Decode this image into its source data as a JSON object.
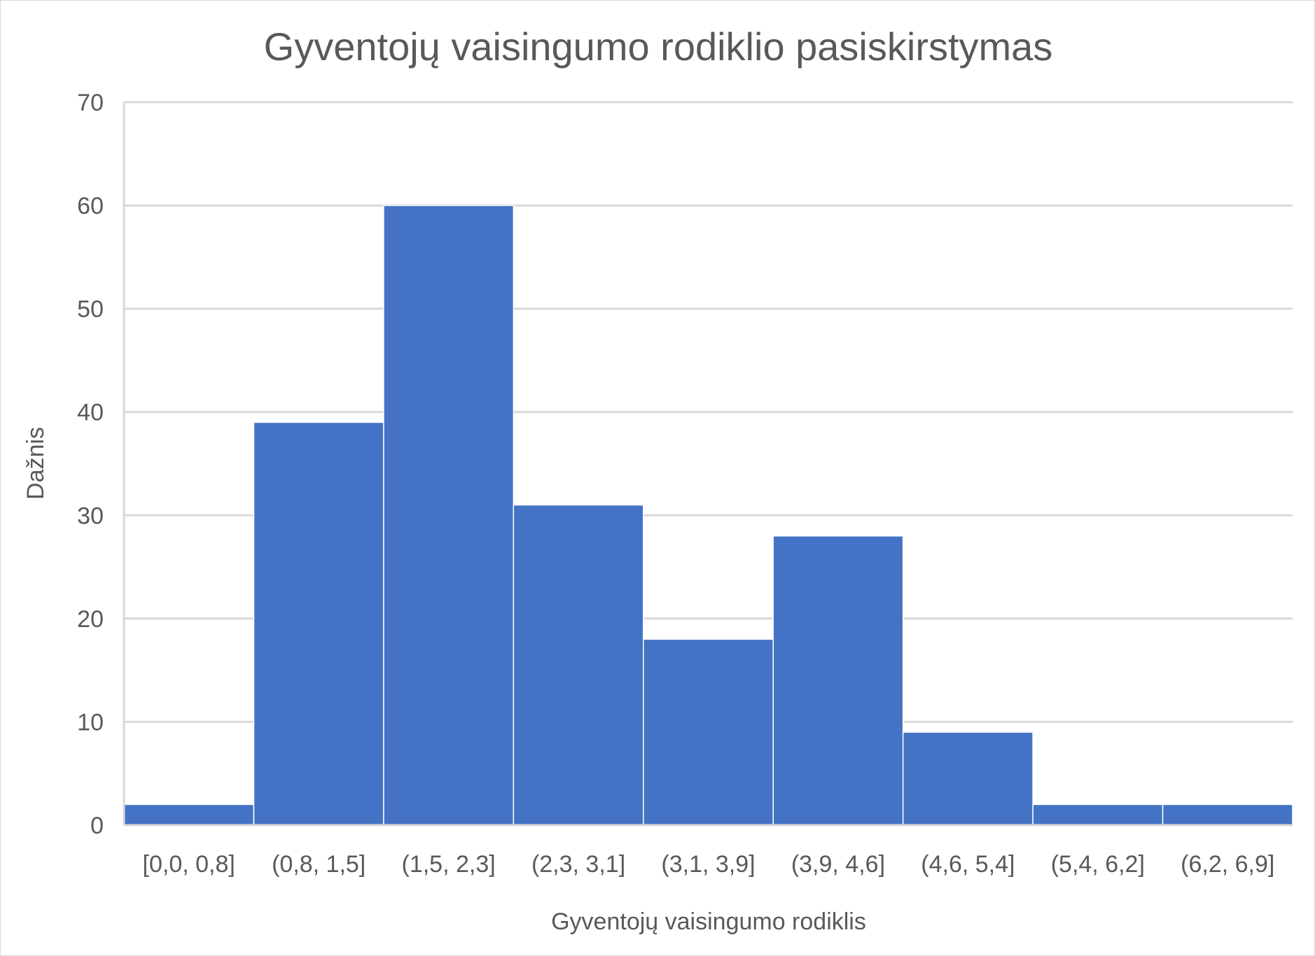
{
  "chart_data": {
    "type": "bar",
    "title": "Gyventojų vaisingumo rodiklio pasiskirstymas",
    "xlabel": "Gyventojų vaisingumo rodiklis",
    "ylabel": "Dažnis",
    "categories": [
      "[0,0, 0,8]",
      "(0,8, 1,5]",
      "(1,5, 2,3]",
      "(2,3, 3,1]",
      "(3,1, 3,9]",
      "(3,9, 4,6]",
      "(4,6, 5,4]",
      "(5,4, 6,2]",
      "(6,2, 6,9]"
    ],
    "values": [
      2,
      39,
      60,
      31,
      18,
      28,
      9,
      2,
      2
    ],
    "ylim": [
      0,
      70
    ],
    "yticks": [
      0,
      10,
      20,
      30,
      40,
      50,
      60,
      70
    ],
    "grid": true,
    "bar_color": "#4472c4",
    "grid_color": "#d9d9d9"
  }
}
